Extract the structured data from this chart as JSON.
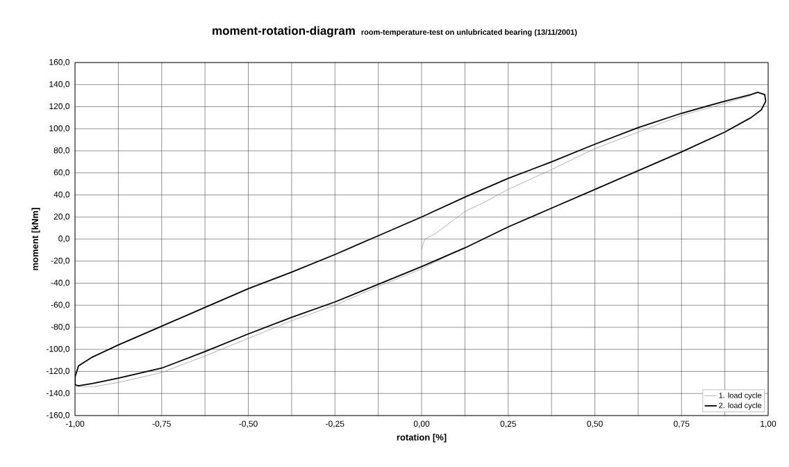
{
  "chart_data": {
    "type": "line",
    "title": "moment-rotation-diagram",
    "subtitle": "room-temperature-test on unlubricated bearing (13/11/2001)",
    "xlabel": "rotation [%]",
    "ylabel": "moment [kNm]",
    "xlim": [
      -1,
      1
    ],
    "ylim": [
      -160,
      160
    ],
    "xticks": [
      {
        "value": -1,
        "label": "-1,00"
      },
      {
        "value": -0.875,
        "label": null
      },
      {
        "value": -0.75,
        "label": "-0,75"
      },
      {
        "value": -0.625,
        "label": null
      },
      {
        "value": -0.5,
        "label": "-0,50"
      },
      {
        "value": -0.375,
        "label": null
      },
      {
        "value": -0.25,
        "label": "-0,25"
      },
      {
        "value": -0.125,
        "label": null
      },
      {
        "value": 0,
        "label": "0,00"
      },
      {
        "value": 0.125,
        "label": null
      },
      {
        "value": 0.25,
        "label": "0,25"
      },
      {
        "value": 0.375,
        "label": null
      },
      {
        "value": 0.5,
        "label": "0,50"
      },
      {
        "value": 0.625,
        "label": null
      },
      {
        "value": 0.75,
        "label": "0,75"
      },
      {
        "value": 0.875,
        "label": null
      },
      {
        "value": 1,
        "label": "1,00"
      }
    ],
    "yticks": [
      {
        "value": -160,
        "label": "-160,0"
      },
      {
        "value": -140,
        "label": "-140,0"
      },
      {
        "value": -120,
        "label": "-120,0"
      },
      {
        "value": -100,
        "label": "-100,0"
      },
      {
        "value": -80,
        "label": "-80,0"
      },
      {
        "value": -60,
        "label": "-60,0"
      },
      {
        "value": -40,
        "label": "-40,0"
      },
      {
        "value": -20,
        "label": "-20,0"
      },
      {
        "value": 0,
        "label": "0,0"
      },
      {
        "value": 20,
        "label": "20,0"
      },
      {
        "value": 40,
        "label": "40,0"
      },
      {
        "value": 60,
        "label": "60,0"
      },
      {
        "value": 80,
        "label": "80,0"
      },
      {
        "value": 100,
        "label": "100,0"
      },
      {
        "value": 120,
        "label": "120,0"
      },
      {
        "value": 140,
        "label": "140,0"
      },
      {
        "value": 160,
        "label": "160,0"
      }
    ],
    "grid": true,
    "legend": "bottom right",
    "marker": "none",
    "line_style": "solid",
    "series": [
      {
        "name": "1. load cycle",
        "color": "#808080",
        "x": [
          0,
          0.005,
          0.01,
          0.04,
          0.091,
          0.125,
          0.185,
          0.25,
          0.375,
          0.5,
          0.625,
          0.75,
          0.875,
          0.95,
          null,
          -1,
          -0.95,
          -0.875,
          -0.75,
          -0.625,
          -0.5,
          -0.375,
          -0.25,
          -0.125,
          0,
          0.1
        ],
        "values": [
          -9,
          -4,
          0,
          5,
          17,
          25,
          34,
          45,
          63,
          82,
          97,
          112,
          123,
          130,
          null,
          -134,
          -134,
          -130,
          -121,
          -106,
          -90,
          -74,
          -60,
          -43,
          -27,
          -11
        ]
      },
      {
        "name": "2. load cycle",
        "color": "#000000",
        "x": [
          -1,
          -0.99,
          -0.95,
          -0.875,
          -0.75,
          -0.625,
          -0.5,
          -0.375,
          -0.25,
          -0.125,
          0,
          0.125,
          0.25,
          0.375,
          0.5,
          0.625,
          0.75,
          0.875,
          0.95,
          0.98,
          0.993,
          null,
          0.993,
          0.99,
          0.97,
          0.95,
          0.875,
          0.75,
          0.625,
          0.5,
          0.375,
          0.25,
          0.125,
          0,
          -0.125,
          -0.25,
          -0.375,
          -0.5,
          -0.625,
          -0.75,
          -0.875,
          -0.95,
          -0.99,
          -1,
          -1
        ],
        "values": [
          -132,
          -133,
          -131,
          -126,
          -117,
          -102,
          -86,
          -71,
          -57,
          -41,
          -25,
          -8,
          11,
          28,
          45,
          62,
          79,
          97,
          110,
          117,
          125,
          null,
          125,
          131,
          133,
          131,
          125,
          114,
          101,
          86,
          70,
          55,
          38,
          20,
          3,
          -14,
          -30,
          -45,
          -62,
          -79,
          -96,
          -107,
          -115,
          -125,
          -132
        ]
      }
    ]
  }
}
